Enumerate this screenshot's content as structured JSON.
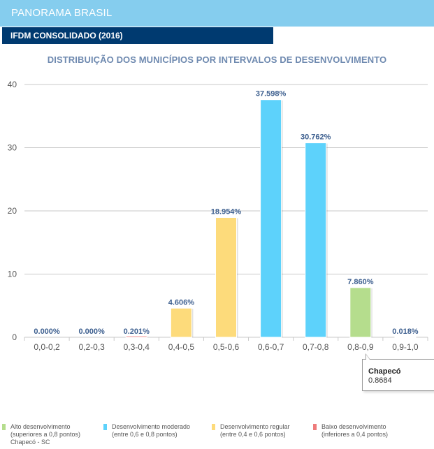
{
  "header": {
    "title": "PANORAMA BRASIL",
    "subtitle": "IFDM CONSOLIDADO (2016)"
  },
  "colors": {
    "header_bg": "#85cdee",
    "subheader_bg": "#003a70",
    "alto": "#b5dd8d",
    "moderado": "#5dd2fb",
    "regular": "#fddb7b",
    "baixo": "#ee7b7b",
    "label": "#3d5f8f",
    "grid": "#c8c8c8",
    "axis_text": "#555555"
  },
  "chart_data": {
    "type": "bar",
    "title": "DISTRIBUIÇÃO DOS MUNICÍPIOS POR INTERVALOS DE DESENVOLVIMENTO",
    "xlabel": "",
    "ylabel": "",
    "ylim": [
      0,
      40
    ],
    "yticks": [
      0,
      10,
      20,
      30,
      40
    ],
    "grid": true,
    "categories": [
      "0,0-0,2",
      "0,2-0,3",
      "0,3-0,4",
      "0,4-0,5",
      "0,5-0,6",
      "0,6-0,7",
      "0,7-0,8",
      "0,8-0,9",
      "0,9-1,0"
    ],
    "values": [
      0.0,
      0.0,
      0.201,
      4.606,
      18.954,
      37.598,
      30.762,
      7.86,
      0.018
    ],
    "data_labels": [
      "0.000%",
      "0.000%",
      "0.201%",
      "4.606%",
      "18.954%",
      "37.598%",
      "30.762%",
      "7.860%",
      "0.018%"
    ],
    "bar_classes": [
      "baixo",
      "baixo",
      "baixo",
      "regular",
      "regular",
      "moderado",
      "moderado",
      "alto",
      "alto"
    ],
    "legend_position": "bottom",
    "tooltip": {
      "category": "0,8-0,9",
      "name": "Chapecó",
      "value": "0.8684"
    }
  },
  "legend": [
    {
      "key": "alto",
      "line1": "Alto desenvolvimento",
      "line2": "(superiores a 0,8 pontos)",
      "line3": "Chapecó - SC"
    },
    {
      "key": "moderado",
      "line1": "Desenvolvimento moderado",
      "line2": "(entre 0,6 e 0,8 pontos)",
      "line3": ""
    },
    {
      "key": "regular",
      "line1": "Desenvolvimento regular",
      "line2": "(entre 0,4 e 0,6 pontos)",
      "line3": ""
    },
    {
      "key": "baixo",
      "line1": "Baixo desenvolvimento",
      "line2": "(inferiores a 0,4 pontos)",
      "line3": ""
    }
  ]
}
